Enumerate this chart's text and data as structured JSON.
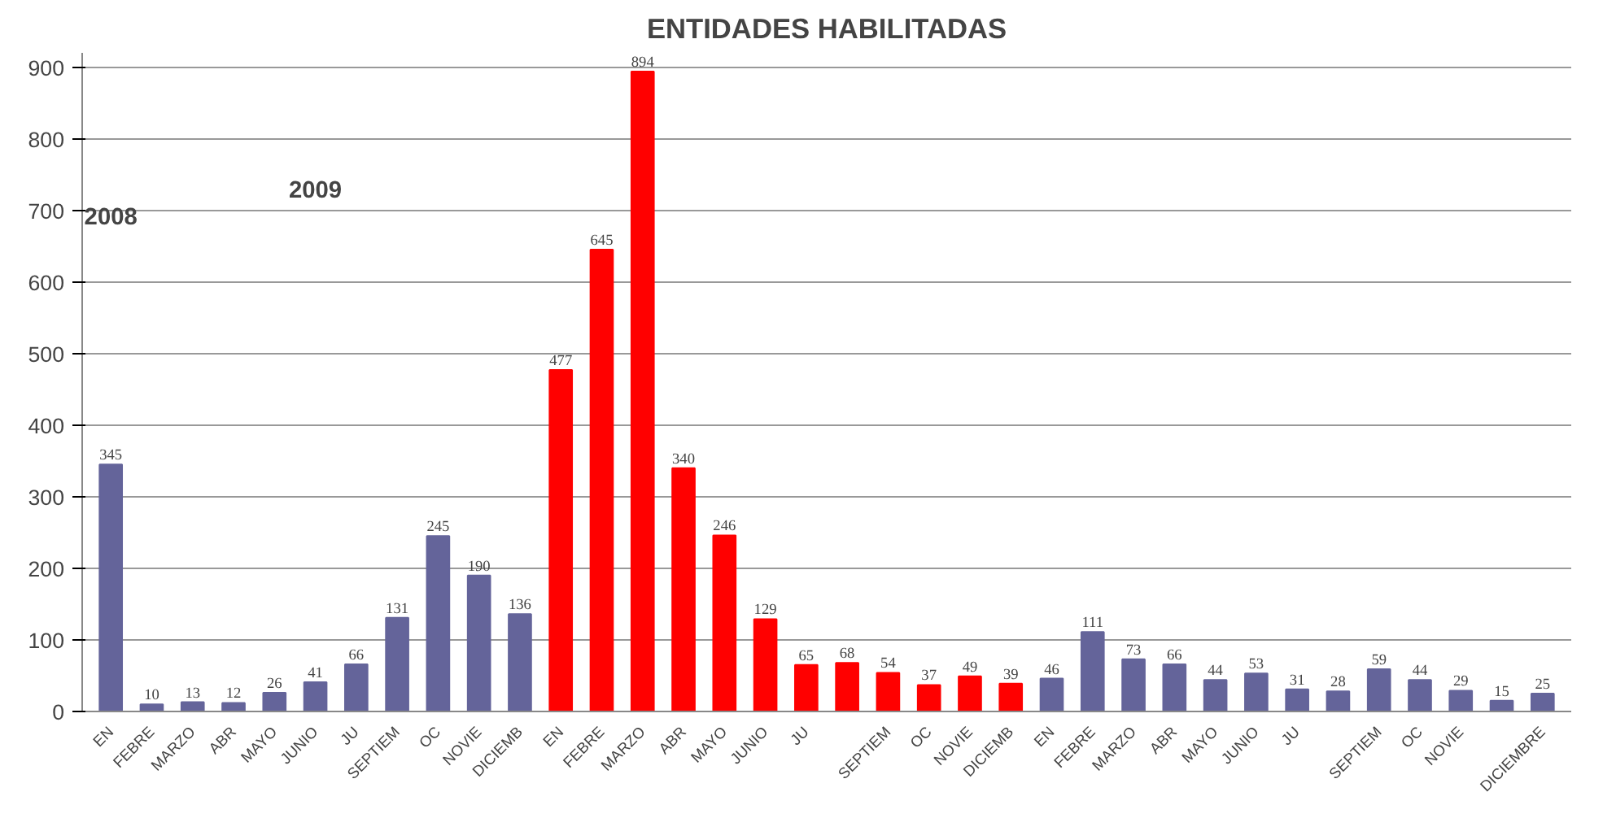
{
  "chart_data": {
    "type": "bar",
    "title": "ENTIDADES HABILITADAS",
    "categories": [
      "EN",
      "FEBRE",
      "MARZO",
      "ABR",
      "MAYO",
      "JUNIO",
      "JU",
      "SEPTIEM",
      "OC",
      "NOVIE",
      "DICIEMB",
      "EN",
      "FEBRE",
      "MARZO",
      "ABR",
      "MAYO",
      "JUNIO",
      "JU",
      null,
      "SEPTIEM",
      "OC",
      "NOVIE",
      "DICIEMB",
      "EN",
      "FEBRE",
      "MARZO",
      "ABR",
      "MAYO",
      "JUNIO",
      "JU",
      null,
      "SEPTIEM",
      "OC",
      "NOVIE",
      null,
      "DICIEMBRE"
    ],
    "values": [
      345,
      10,
      13,
      12,
      26,
      41,
      66,
      131,
      245,
      190,
      136,
      477,
      645,
      894,
      340,
      246,
      129,
      65,
      68,
      54,
      37,
      49,
      39,
      46,
      111,
      73,
      66,
      44,
      53,
      31,
      28,
      59,
      44,
      29,
      15,
      25
    ],
    "colors": [
      "#64649a",
      "#64649a",
      "#64649a",
      "#64649a",
      "#64649a",
      "#64649a",
      "#64649a",
      "#64649a",
      "#64649a",
      "#64649a",
      "#64649a",
      "#ff0000",
      "#ff0000",
      "#ff0000",
      "#ff0000",
      "#ff0000",
      "#ff0000",
      "#ff0000",
      "#ff0000",
      "#ff0000",
      "#ff0000",
      "#ff0000",
      "#ff0000",
      "#64649a",
      "#64649a",
      "#64649a",
      "#64649a",
      "#64649a",
      "#64649a",
      "#64649a",
      "#64649a",
      "#64649a",
      "#64649a",
      "#64649a",
      "#64649a",
      "#64649a"
    ],
    "ylim": [
      0,
      920
    ],
    "yticks": [
      0,
      100,
      200,
      300,
      400,
      500,
      600,
      700,
      800,
      900
    ],
    "grid": "y",
    "data_labels": true,
    "annotations": [
      "2008",
      "2009"
    ]
  }
}
